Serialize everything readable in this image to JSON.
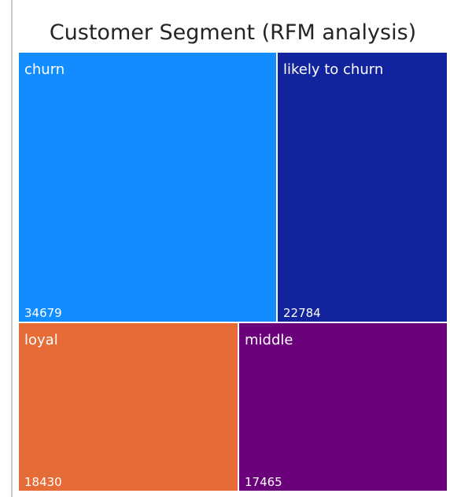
{
  "chart_data": {
    "type": "treemap",
    "title": "Customer Segment (RFM analysis)",
    "categories": [
      "churn",
      "likely to churn",
      "loyal",
      "middle"
    ],
    "values": [
      34679,
      22784,
      18430,
      17465
    ],
    "colors": [
      "#118dff",
      "#12239e",
      "#e66c37",
      "#6b007b"
    ],
    "legend": "none"
  }
}
